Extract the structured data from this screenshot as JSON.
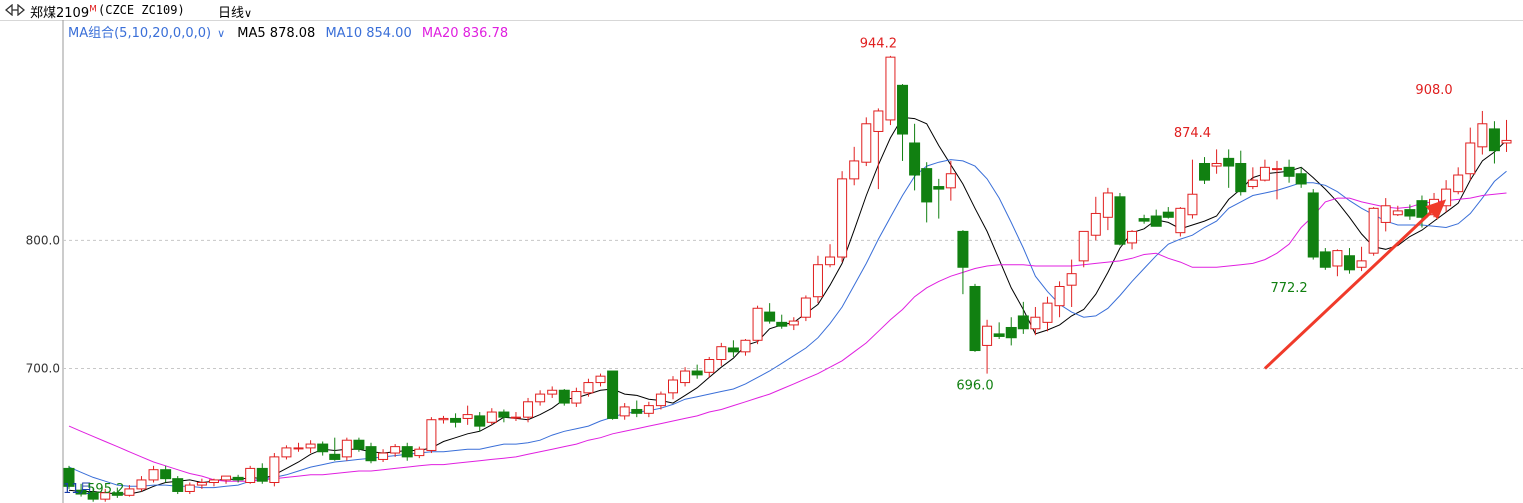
{
  "header": {
    "symbol_name": "郑煤2109",
    "badge": "M",
    "code": "(CZCE ZC109)",
    "period": "日线",
    "period_caret": "∨"
  },
  "ma_legend": {
    "group_label": "MA组合(5,10,20,0,0,0)",
    "group_caret": "∨",
    "ma5": "MA5 878.08",
    "ma10": "MA10 854.00",
    "ma20": "MA20 836.78"
  },
  "colors": {
    "up": "#e02020",
    "down": "#118011",
    "ma5": "#000000",
    "ma10": "#3a6fd8",
    "ma20": "#e020e0",
    "arrow": "#f03a2a",
    "grid": "#c8c8c8"
  },
  "chart_data": {
    "type": "candlestick",
    "ylim": [
      595,
      972
    ],
    "y_ticks": [
      "800.0",
      "700.0"
    ],
    "y_tick_values": [
      800,
      700
    ],
    "grid": true,
    "annotations": [
      {
        "text": "944.2",
        "index": 67,
        "value": 944.2,
        "color": "up",
        "position": "above"
      },
      {
        "text": "696.0",
        "index": 75,
        "value": 696.0,
        "color": "down",
        "position": "below"
      },
      {
        "text": "874.4",
        "index": 93,
        "value": 874.4,
        "color": "up",
        "position": "above"
      },
      {
        "text": "772.2",
        "index": 101,
        "value": 772.2,
        "color": "down",
        "position": "below"
      },
      {
        "text": "908.0",
        "index": 113,
        "value": 908.0,
        "color": "up",
        "position": "above"
      }
    ],
    "bottom_labels": [
      {
        "text": "11月",
        "index": 0
      },
      {
        "text": "595.2",
        "index": 2
      }
    ],
    "arrow": {
      "from": [
        99,
        700
      ],
      "to": [
        114,
        832
      ]
    },
    "candles": [
      [
        622,
        608,
        624,
        606
      ],
      [
        605,
        602,
        610,
        600
      ],
      [
        603,
        598,
        606,
        596
      ],
      [
        598,
        603,
        606,
        596
      ],
      [
        603,
        601,
        607,
        599
      ],
      [
        601,
        606,
        609,
        600
      ],
      [
        606,
        613,
        616,
        604
      ],
      [
        613,
        621,
        624,
        611
      ],
      [
        621,
        614,
        624,
        611
      ],
      [
        614,
        604,
        616,
        602
      ],
      [
        604,
        609,
        611,
        602
      ],
      [
        609,
        611,
        614,
        606
      ],
      [
        611,
        613,
        614,
        608
      ],
      [
        613,
        616,
        616,
        610
      ],
      [
        615,
        613,
        617,
        611
      ],
      [
        611,
        622,
        624,
        610
      ],
      [
        622,
        612,
        626,
        610
      ],
      [
        611,
        631,
        634,
        608
      ],
      [
        631,
        638,
        640,
        629
      ],
      [
        638,
        638,
        642,
        635
      ],
      [
        638,
        641,
        644,
        634
      ],
      [
        641,
        635,
        643,
        632
      ],
      [
        633,
        629,
        646,
        628
      ],
      [
        631,
        644,
        646,
        628
      ],
      [
        644,
        637,
        646,
        635
      ],
      [
        639,
        628,
        642,
        626
      ],
      [
        629,
        634,
        637,
        627
      ],
      [
        634,
        639,
        641,
        631
      ],
      [
        639,
        631,
        642,
        628
      ],
      [
        632,
        637,
        639,
        630
      ],
      [
        636,
        660,
        662,
        634
      ],
      [
        660,
        661,
        663,
        657
      ],
      [
        661,
        658,
        665,
        654
      ],
      [
        661,
        664,
        671,
        656
      ],
      [
        663,
        655,
        666,
        651
      ],
      [
        658,
        666,
        669,
        656
      ],
      [
        666,
        662,
        668,
        658
      ],
      [
        662,
        662,
        666,
        659
      ],
      [
        662,
        674,
        677,
        658
      ],
      [
        674,
        680,
        683,
        671
      ],
      [
        680,
        683,
        686,
        677
      ],
      [
        683,
        673,
        684,
        671
      ],
      [
        673,
        682,
        685,
        670
      ],
      [
        681,
        689,
        692,
        678
      ],
      [
        689,
        694,
        696,
        686
      ],
      [
        698,
        661,
        698,
        660
      ],
      [
        663,
        670,
        673,
        660
      ],
      [
        668,
        665,
        675,
        662
      ],
      [
        665,
        671,
        674,
        662
      ],
      [
        671,
        680,
        682,
        668
      ],
      [
        681,
        691,
        694,
        676
      ],
      [
        689,
        698,
        701,
        686
      ],
      [
        698,
        695,
        703,
        692
      ],
      [
        697,
        707,
        709,
        693
      ],
      [
        707,
        717,
        720,
        702
      ],
      [
        716,
        713,
        722,
        709
      ],
      [
        713,
        722,
        723,
        710
      ],
      [
        722,
        747,
        749,
        719
      ],
      [
        744,
        737,
        751,
        735
      ],
      [
        736,
        733,
        742,
        731
      ],
      [
        734,
        737,
        740,
        730
      ],
      [
        740,
        755,
        757,
        737
      ],
      [
        756,
        781,
        788,
        751
      ],
      [
        781,
        787,
        797,
        779
      ],
      [
        787,
        848,
        854,
        783
      ],
      [
        848,
        862,
        873,
        843
      ],
      [
        861,
        891,
        896,
        858
      ],
      [
        885,
        901,
        903,
        840
      ],
      [
        894,
        943,
        944,
        890
      ],
      [
        921,
        883,
        922,
        862
      ],
      [
        876,
        851,
        891,
        839
      ],
      [
        856,
        830,
        861,
        814
      ],
      [
        842,
        840,
        848,
        817
      ],
      [
        841,
        852,
        862,
        831
      ],
      [
        807,
        779,
        808,
        758
      ],
      [
        764,
        714,
        766,
        713
      ],
      [
        718,
        733,
        738,
        696
      ],
      [
        727,
        725,
        736,
        723
      ],
      [
        732,
        724,
        740,
        718
      ],
      [
        741,
        731,
        752,
        727
      ],
      [
        731,
        740,
        748,
        726
      ],
      [
        736,
        751,
        756,
        729
      ],
      [
        749,
        764,
        768,
        740
      ],
      [
        765,
        774,
        785,
        748
      ],
      [
        784,
        807,
        807,
        779
      ],
      [
        804,
        821,
        834,
        800
      ],
      [
        818,
        837,
        841,
        808
      ],
      [
        834,
        797,
        837,
        796
      ],
      [
        798,
        807,
        808,
        793
      ],
      [
        817,
        815,
        820,
        813
      ],
      [
        819,
        811,
        824,
        812
      ],
      [
        822,
        818,
        826,
        817
      ],
      [
        806,
        825,
        826,
        803
      ],
      [
        820,
        836,
        863,
        817
      ],
      [
        860,
        847,
        865,
        844
      ],
      [
        858,
        860,
        871,
        852
      ],
      [
        864,
        858,
        871,
        841
      ],
      [
        860,
        838,
        870,
        835
      ],
      [
        842,
        847,
        857,
        840
      ],
      [
        847,
        857,
        863,
        846
      ],
      [
        856,
        856,
        862,
        832
      ],
      [
        857,
        850,
        863,
        845
      ],
      [
        852,
        844,
        857,
        841
      ],
      [
        837,
        787,
        840,
        785
      ],
      [
        791,
        779,
        794,
        777
      ],
      [
        780,
        792,
        793,
        772
      ],
      [
        788,
        777,
        794,
        774
      ],
      [
        779,
        784,
        795,
        776
      ],
      [
        790,
        825,
        826,
        788
      ],
      [
        814,
        827,
        833,
        807
      ],
      [
        820,
        823,
        827,
        819
      ],
      [
        824,
        819,
        828,
        816
      ],
      [
        831,
        818,
        835,
        810
      ],
      [
        820,
        832,
        837,
        818
      ],
      [
        827,
        840,
        847,
        822
      ],
      [
        838,
        851,
        857,
        836
      ],
      [
        852,
        876,
        888,
        847
      ],
      [
        873,
        891,
        901,
        867
      ],
      [
        887,
        870,
        893,
        860
      ],
      [
        876,
        878,
        894,
        869
      ]
    ],
    "series": [
      {
        "name": "MA5",
        "color": "ma5",
        "values": [
          605,
          604,
          604,
          603,
          602,
          602,
          604,
          608,
          611,
          612,
          613,
          611,
          612,
          614,
          613,
          615,
          614,
          617,
          622,
          627,
          633,
          637,
          636,
          637,
          637,
          635,
          634,
          635,
          636,
          636,
          638,
          643,
          646,
          649,
          651,
          656,
          662,
          661,
          660,
          664,
          669,
          676,
          677,
          680,
          683,
          684,
          680,
          679,
          676,
          675,
          673,
          679,
          685,
          693,
          701,
          708,
          718,
          721,
          731,
          734,
          736,
          743,
          750,
          765,
          782,
          808,
          835,
          859,
          880,
          896,
          895,
          891,
          874,
          859,
          844,
          825,
          807,
          785,
          763,
          746,
          727,
          730,
          734,
          741,
          746,
          758,
          775,
          794,
          806,
          809,
          816,
          814,
          809,
          812,
          815,
          819,
          832,
          840,
          849,
          852,
          853,
          854,
          857,
          849,
          840,
          830,
          818,
          805,
          795,
          793,
          796,
          803,
          808,
          815,
          822,
          829,
          847,
          862,
          869,
          878
        ]
      },
      {
        "name": "MA10",
        "color": "ma10",
        "values": [
          623,
          619,
          615,
          612,
          609,
          608,
          608,
          609,
          609,
          608,
          608,
          607,
          607,
          608,
          609,
          612,
          614,
          615,
          617,
          620,
          623,
          625,
          627,
          628,
          629,
          630,
          631,
          632,
          633,
          634,
          635,
          635,
          636,
          637,
          637,
          639,
          641,
          641,
          642,
          644,
          648,
          651,
          653,
          655,
          659,
          662,
          665,
          666,
          667,
          669,
          672,
          676,
          678,
          680,
          682,
          684,
          688,
          693,
          698,
          704,
          710,
          716,
          724,
          735,
          748,
          765,
          782,
          801,
          818,
          835,
          850,
          858,
          861,
          863,
          862,
          858,
          848,
          833,
          814,
          794,
          772,
          760,
          750,
          744,
          740,
          741,
          747,
          757,
          768,
          778,
          788,
          797,
          801,
          804,
          810,
          815,
          825,
          830,
          835,
          837,
          839,
          842,
          845,
          845,
          843,
          838,
          831,
          825,
          820,
          815,
          812,
          812,
          812,
          811,
          810,
          813,
          821,
          833,
          846,
          854
        ]
      },
      {
        "name": "MA20",
        "color": "ma20",
        "values": [
          655,
          651,
          647,
          643,
          639,
          635,
          631,
          627,
          624,
          621,
          618,
          616,
          613,
          612,
          612,
          612,
          613,
          614,
          615,
          616,
          617,
          617,
          618,
          619,
          620,
          620,
          621,
          622,
          623,
          624,
          625,
          625,
          626,
          627,
          628,
          629,
          630,
          631,
          633,
          635,
          637,
          639,
          641,
          644,
          646,
          649,
          651,
          653,
          655,
          657,
          659,
          661,
          663,
          666,
          668,
          671,
          674,
          677,
          680,
          684,
          688,
          692,
          696,
          701,
          706,
          713,
          720,
          729,
          738,
          746,
          756,
          763,
          768,
          772,
          775,
          778,
          780,
          781,
          781,
          781,
          780,
          780,
          780,
          780,
          781,
          782,
          783,
          784,
          786,
          789,
          790,
          786,
          783,
          779,
          779,
          779,
          780,
          781,
          782,
          785,
          790,
          797,
          810,
          819,
          830,
          833,
          833,
          830,
          828,
          826,
          825,
          826,
          829,
          830,
          831,
          832,
          833,
          835,
          836,
          837
        ]
      }
    ]
  }
}
